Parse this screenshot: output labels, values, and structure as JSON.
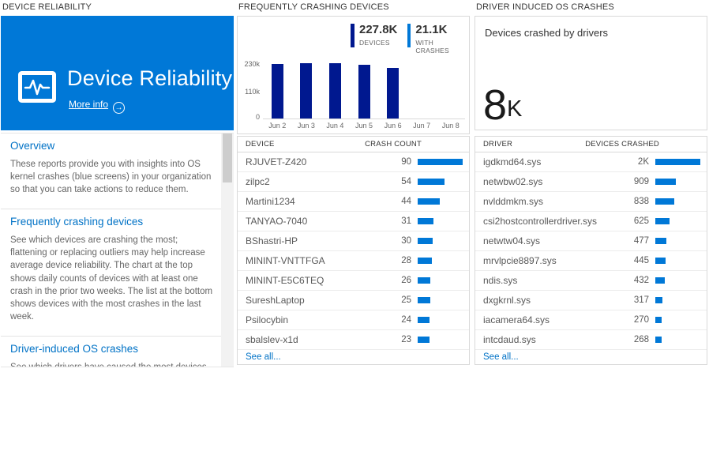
{
  "headers": {
    "col1": "DEVICE RELIABILITY",
    "col2": "FREQUENTLY CRASHING DEVICES",
    "col3": "DRIVER INDUCED OS CRASHES"
  },
  "tile": {
    "title": "Device Reliability",
    "more_info_label": "More info",
    "arrow_glyph": "→"
  },
  "overview": {
    "sections": [
      {
        "heading": "Overview",
        "body": "These reports provide you with insights into OS kernel crashes (blue screens) in your organization so that you can take actions to reduce them."
      },
      {
        "heading": "Frequently crashing devices",
        "body": "See which devices are crashing the most; flattening or replacing outliers may help increase average device reliability. The chart at the top shows daily counts of devices with at least one crash in the prior two weeks. The list at the bottom shows devices with the most crashes in the last week."
      },
      {
        "heading": "Driver-induced OS crashes",
        "body": "See which drivers have caused the most devices to crash in the last two weeks; upgrading or replacing these drivers"
      }
    ]
  },
  "chart_data": {
    "type": "bar",
    "panel_title": "FREQUENTLY CRASHING DEVICES",
    "stats": [
      {
        "value": "227.8K",
        "label": "DEVICES",
        "color": "#00188f"
      },
      {
        "value": "21.1K",
        "label": "WITH CRASHES",
        "color": "#0078d7"
      }
    ],
    "categories": [
      "Jun 2",
      "Jun 3",
      "Jun 4",
      "Jun 5",
      "Jun 6",
      "Jun 7",
      "Jun 8"
    ],
    "values": [
      226000,
      229000,
      229000,
      224000,
      211000,
      0,
      0
    ],
    "ylim": [
      0,
      230000
    ],
    "ytick_labels": [
      "230k",
      "110k",
      "0"
    ],
    "bar_color": "#00188f",
    "grid": false,
    "legend_position": "top-right"
  },
  "device_table": {
    "col_device": "DEVICE",
    "col_count": "CRASH COUNT",
    "rows": [
      {
        "name": "RJUVET-Z420",
        "count": 90,
        "display": "90"
      },
      {
        "name": "zilpc2",
        "count": 54,
        "display": "54"
      },
      {
        "name": "Martini1234",
        "count": 44,
        "display": "44"
      },
      {
        "name": "TANYAO-7040",
        "count": 31,
        "display": "31"
      },
      {
        "name": "BShastri-HP",
        "count": 30,
        "display": "30"
      },
      {
        "name": "MININT-VNTTFGA",
        "count": 28,
        "display": "28"
      },
      {
        "name": "MININT-E5C6TEQ",
        "count": 26,
        "display": "26"
      },
      {
        "name": "SureshLaptop",
        "count": 25,
        "display": "25"
      },
      {
        "name": "Psilocybin",
        "count": 24,
        "display": "24"
      },
      {
        "name": "sbalslev-x1d",
        "count": 23,
        "display": "23"
      }
    ],
    "see_all": "See all..."
  },
  "driver_summary": {
    "caption": "Devices crashed by drivers",
    "value": "8",
    "unit": "K"
  },
  "driver_table": {
    "col_driver": "DRIVER",
    "col_count": "DEVICES CRASHED",
    "rows": [
      {
        "name": "igdkmd64.sys",
        "count": 2000,
        "display": "2K"
      },
      {
        "name": "netwbw02.sys",
        "count": 909,
        "display": "909"
      },
      {
        "name": "nvlddmkm.sys",
        "count": 838,
        "display": "838"
      },
      {
        "name": "csi2hostcontrollerdriver.sys",
        "count": 625,
        "display": "625"
      },
      {
        "name": "netwtw04.sys",
        "count": 477,
        "display": "477"
      },
      {
        "name": "mrvlpcie8897.sys",
        "count": 445,
        "display": "445"
      },
      {
        "name": "ndis.sys",
        "count": 432,
        "display": "432"
      },
      {
        "name": "dxgkrnl.sys",
        "count": 317,
        "display": "317"
      },
      {
        "name": "iacamera64.sys",
        "count": 270,
        "display": "270"
      },
      {
        "name": "intcdaud.sys",
        "count": 268,
        "display": "268"
      }
    ],
    "see_all": "See all..."
  },
  "colors": {
    "tile_blue": "#0078d7",
    "row_bar_blue": "#0078d7",
    "chart_navy": "#00188f",
    "link_blue": "#0072c6"
  }
}
